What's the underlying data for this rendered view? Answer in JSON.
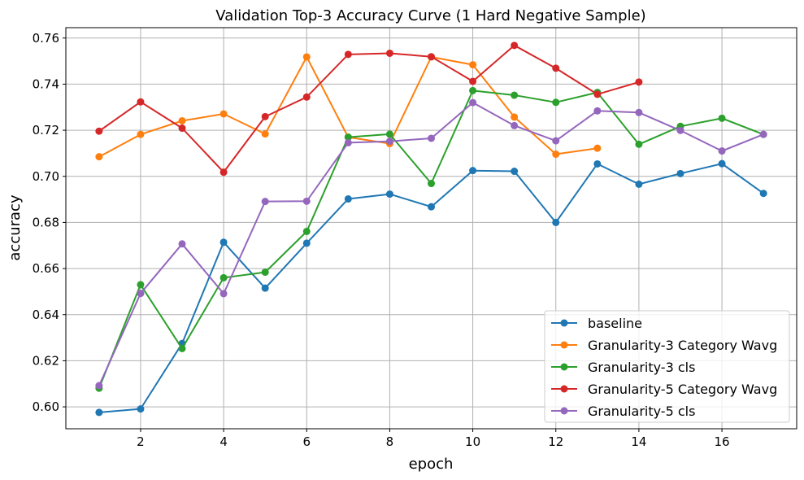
{
  "chart_data": {
    "type": "line",
    "title": "Validation Top-3 Accuracy Curve (1 Hard Negative Sample)",
    "xlabel": "epoch",
    "ylabel": "accuracy",
    "xlim": [
      0.2,
      17.8
    ],
    "ylim": [
      0.5905,
      0.7645
    ],
    "xticks": [
      2,
      4,
      6,
      8,
      10,
      12,
      14,
      16
    ],
    "yticks": [
      0.6,
      0.62,
      0.64,
      0.66,
      0.68,
      0.7,
      0.72,
      0.74,
      0.76
    ],
    "ytick_labels": [
      "0.60",
      "0.62",
      "0.64",
      "0.66",
      "0.68",
      "0.70",
      "0.72",
      "0.74",
      "0.76"
    ],
    "grid": true,
    "legend_position": "lower-right",
    "series": [
      {
        "name": "baseline",
        "color": "#1f77b4",
        "x": [
          1,
          2,
          3,
          4,
          5,
          6,
          7,
          8,
          9,
          10,
          11,
          12,
          13,
          14,
          15,
          16,
          17
        ],
        "values": [
          0.5976,
          0.5991,
          0.6275,
          0.6714,
          0.6515,
          0.671,
          0.6902,
          0.6923,
          0.6868,
          0.7025,
          0.7022,
          0.68,
          0.7054,
          0.6966,
          0.7012,
          0.7055,
          0.6926
        ]
      },
      {
        "name": "Granularity-3 Category Wavg",
        "color": "#ff7f0e",
        "x": [
          1,
          2,
          3,
          4,
          5,
          6,
          7,
          8,
          9,
          10,
          11,
          12,
          13
        ],
        "values": [
          0.7085,
          0.7182,
          0.7241,
          0.7271,
          0.7184,
          0.7518,
          0.717,
          0.7142,
          0.7518,
          0.7484,
          0.7257,
          0.7096,
          0.7122
        ]
      },
      {
        "name": "Granularity-3 cls",
        "color": "#2ca02c",
        "x": [
          1,
          2,
          3,
          4,
          5,
          6,
          7,
          8,
          9,
          10,
          11,
          12,
          13,
          14,
          15,
          16,
          17
        ],
        "values": [
          0.6081,
          0.653,
          0.6253,
          0.656,
          0.6584,
          0.6761,
          0.717,
          0.7183,
          0.6969,
          0.7372,
          0.7352,
          0.7321,
          0.7364,
          0.7139,
          0.7217,
          0.7252,
          0.7182
        ]
      },
      {
        "name": "Granularity-5 Category Wavg",
        "color": "#d62728",
        "x": [
          1,
          2,
          3,
          4,
          5,
          6,
          7,
          8,
          9,
          10,
          11,
          12,
          13,
          14
        ],
        "values": [
          0.7196,
          0.7323,
          0.7209,
          0.7018,
          0.7259,
          0.7344,
          0.7529,
          0.7534,
          0.7519,
          0.7412,
          0.7568,
          0.7469,
          0.7356,
          0.7409
        ]
      },
      {
        "name": "Granularity-5 cls",
        "color": "#9467bd",
        "x": [
          1,
          2,
          3,
          4,
          5,
          6,
          7,
          8,
          9,
          10,
          11,
          12,
          13,
          14,
          15,
          16,
          17
        ],
        "values": [
          0.6092,
          0.6492,
          0.6707,
          0.6491,
          0.6891,
          0.6892,
          0.7146,
          0.7152,
          0.7165,
          0.732,
          0.722,
          0.7154,
          0.7284,
          0.7277,
          0.7199,
          0.711,
          0.7182
        ]
      }
    ]
  }
}
